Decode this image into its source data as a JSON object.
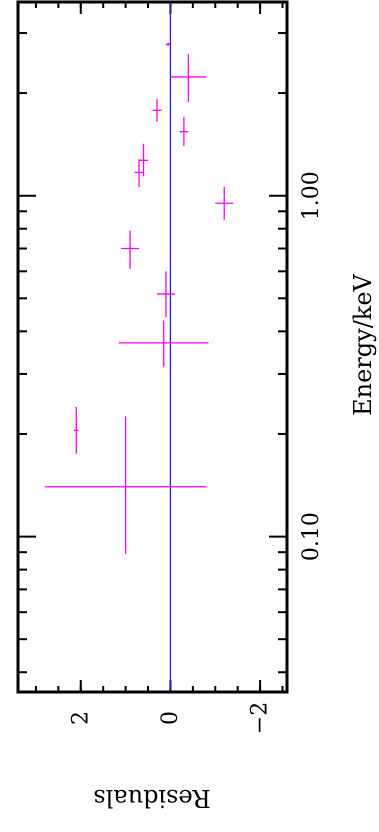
{
  "chart_data": {
    "type": "scatter",
    "orientation": "rotated-90-clockwise",
    "xlabel": "Energy/keV",
    "ylabel": "Residuals",
    "x_scale": "log",
    "xlim": [
      0.035,
      3.7
    ],
    "ylim": [
      -2.6,
      3.4
    ],
    "x_ticks_major": [
      {
        "value": 0.1,
        "label": "0.10"
      },
      {
        "value": 1.0,
        "label": "1.00"
      }
    ],
    "x_ticks_minor": [
      0.04,
      0.05,
      0.06,
      0.07,
      0.08,
      0.09,
      0.2,
      0.3,
      0.4,
      0.5,
      0.6,
      0.7,
      0.8,
      0.9,
      2,
      3
    ],
    "y_ticks": [
      {
        "value": 2,
        "label": "2"
      },
      {
        "value": 0,
        "label": "0"
      },
      {
        "value": -2,
        "label": "−2"
      }
    ],
    "y_minor_step": 0.5,
    "reference_line": {
      "y": 0,
      "color": "#1f1fd6"
    },
    "series": [
      {
        "color": "#ff00ff",
        "points": [
          {
            "x": 0.14,
            "xerr": [
              0.089,
              0.225
            ],
            "y": 1.0,
            "yerr": 1.8
          },
          {
            "x": 0.205,
            "xerr": [
              0.175,
              0.24
            ],
            "y": 2.1,
            "yerr": 0.05
          },
          {
            "x": 0.37,
            "xerr": [
              0.315,
              0.43
            ],
            "y": 0.15,
            "yerr": 1.0
          },
          {
            "x": 0.515,
            "xerr": [
              0.44,
              0.6
            ],
            "y": 0.1,
            "yerr": 0.2
          },
          {
            "x": 0.7,
            "xerr": [
              0.61,
              0.79
            ],
            "y": 0.9,
            "yerr": 0.2
          },
          {
            "x": 0.95,
            "xerr": [
              0.85,
              1.06
            ],
            "y": -1.2,
            "yerr": 0.2
          },
          {
            "x": 1.17,
            "xerr": [
              1.06,
              1.28
            ],
            "y": 0.7,
            "yerr": 0.1
          },
          {
            "x": 1.27,
            "xerr": [
              1.14,
              1.42
            ],
            "y": 0.6,
            "yerr": 0.1
          },
          {
            "x": 1.54,
            "xerr": [
              1.4,
              1.7
            ],
            "y": -0.3,
            "yerr": 0.1
          },
          {
            "x": 1.78,
            "xerr": [
              1.65,
              1.92
            ],
            "y": 0.3,
            "yerr": 0.1
          },
          {
            "x": 2.23,
            "xerr": [
              1.88,
              2.6
            ],
            "y": -0.4,
            "yerr": 0.4
          },
          {
            "x": 2.78,
            "xerr": [
              2.75,
              2.81
            ],
            "y": 0.05,
            "yerr": 0.05
          }
        ]
      }
    ]
  }
}
